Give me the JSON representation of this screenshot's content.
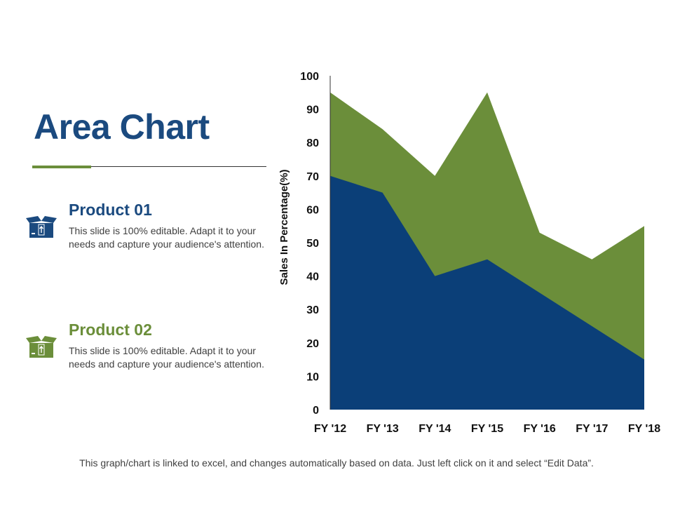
{
  "title": "Area Chart",
  "products": [
    {
      "name": "Product 01",
      "description": "This slide is 100% editable. Adapt it to your needs and capture your audience's attention.",
      "icon": "package-icon",
      "color": "#1b4a7f"
    },
    {
      "name": "Product 02",
      "description": "This slide is 100% editable. Adapt it to your needs and capture your audience's attention.",
      "icon": "package-icon",
      "color": "#6b8e3a"
    }
  ],
  "footer": "This graph/chart is linked to excel, and changes automatically based on data. Just left click on it and select “Edit Data”.",
  "chart_data": {
    "type": "area",
    "title": "",
    "xlabel": "",
    "ylabel": "Sales In Percentage(%)",
    "categories": [
      "FY '12",
      "FY '13",
      "FY '14",
      "FY '15",
      "FY '16",
      "FY '17",
      "FY '18"
    ],
    "ylim": [
      0,
      100
    ],
    "yticks": [
      0,
      10,
      20,
      30,
      40,
      50,
      60,
      70,
      80,
      90,
      100
    ],
    "grid": false,
    "series": [
      {
        "name": "Product 02",
        "values": [
          95,
          84,
          70,
          95,
          53,
          45,
          55
        ],
        "color": "#6b8e3a"
      },
      {
        "name": "Product 01",
        "values": [
          70,
          65,
          40,
          45,
          35,
          25,
          15
        ],
        "color": "#0b3f78"
      }
    ]
  }
}
